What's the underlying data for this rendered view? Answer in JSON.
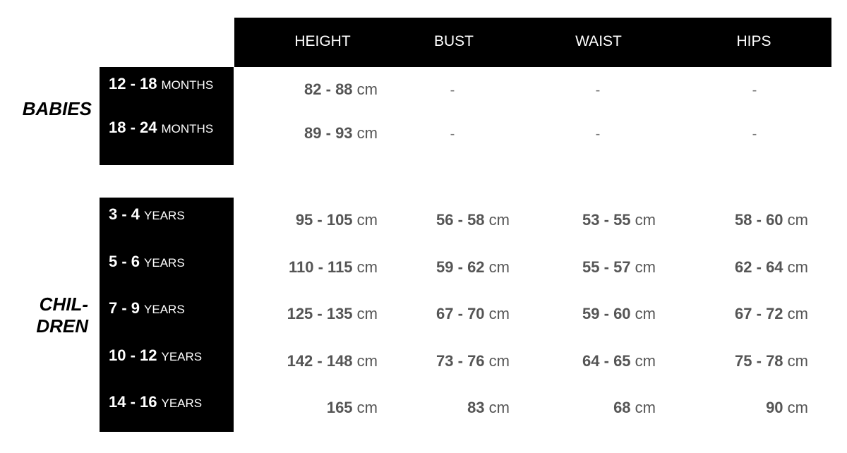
{
  "columns": [
    "HEIGHT",
    "BUST",
    "WAIST",
    "HIPS"
  ],
  "unit": "cm",
  "groups": [
    {
      "label": "BABIES",
      "rows": [
        {
          "range": "12 - 18",
          "period": "MONTHS",
          "values": [
            "82 - 88",
            "-",
            "-",
            "-"
          ]
        },
        {
          "range": "18 - 24",
          "period": "MONTHS",
          "values": [
            "89 - 93",
            "-",
            "-",
            "-"
          ]
        }
      ]
    },
    {
      "label_lines": [
        "CHIL-",
        "DREN"
      ],
      "rows": [
        {
          "range": "3 - 4",
          "period": "YEARS",
          "values": [
            "95 - 105",
            "56 - 58",
            "53 - 55",
            "58 - 60"
          ]
        },
        {
          "range": "5 - 6",
          "period": "YEARS",
          "values": [
            "110 - 115",
            "59 - 62",
            "55 - 57",
            "62 - 64"
          ]
        },
        {
          "range": "7 - 9",
          "period": "YEARS",
          "values": [
            "125 - 135",
            "67 - 70",
            "59 - 60",
            "67 - 72"
          ]
        },
        {
          "range": "10 - 12",
          "period": "YEARS",
          "values": [
            "142 - 148",
            "73 - 76",
            "64 - 65",
            "75 - 78"
          ]
        },
        {
          "range": "14 - 16",
          "period": "YEARS",
          "values": [
            "165",
            "83",
            "68",
            "90"
          ]
        }
      ]
    }
  ]
}
